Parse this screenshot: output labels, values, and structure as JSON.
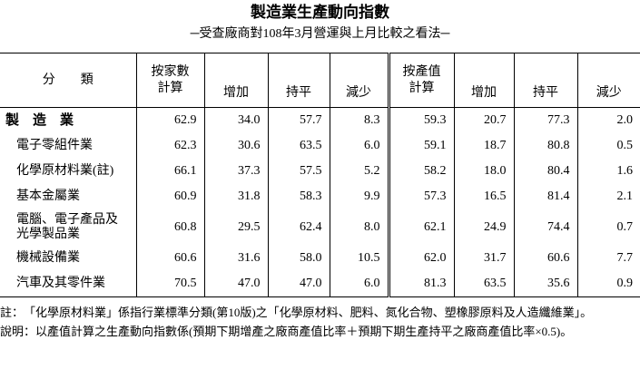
{
  "title": "製造業生產動向指數",
  "subtitle": "─受查廠商對108年3月營運與上月比較之看法─",
  "table": {
    "headers": [
      [
        "分　　類"
      ],
      [
        "按家數",
        "計算"
      ],
      [
        "增加"
      ],
      [
        "持平"
      ],
      [
        "減少"
      ],
      [
        "按產值",
        "計算"
      ],
      [
        "增加"
      ],
      [
        "持平"
      ],
      [
        "減少"
      ]
    ],
    "rows": [
      {
        "name": [
          "製　造　業"
        ],
        "bold": true,
        "values": [
          "62.9",
          "34.0",
          "57.7",
          "8.3",
          "59.3",
          "20.7",
          "77.3",
          "2.0"
        ]
      },
      {
        "name": [
          "電子零組件業"
        ],
        "values": [
          "62.3",
          "30.6",
          "63.5",
          "6.0",
          "59.1",
          "18.7",
          "80.8",
          "0.5"
        ]
      },
      {
        "name": [
          "化學原材料業(註)"
        ],
        "values": [
          "66.1",
          "37.3",
          "57.5",
          "5.2",
          "58.2",
          "18.0",
          "80.4",
          "1.6"
        ]
      },
      {
        "name": [
          "基本金屬業"
        ],
        "values": [
          "60.9",
          "31.8",
          "58.3",
          "9.9",
          "57.3",
          "16.5",
          "81.4",
          "2.1"
        ]
      },
      {
        "name": [
          "電腦、電子產品及",
          "光學製品業"
        ],
        "values": [
          "60.8",
          "29.5",
          "62.4",
          "8.0",
          "62.1",
          "24.9",
          "74.4",
          "0.7"
        ]
      },
      {
        "name": [
          "機械設備業"
        ],
        "values": [
          "60.6",
          "31.6",
          "58.0",
          "10.5",
          "62.0",
          "31.7",
          "60.6",
          "7.7"
        ]
      },
      {
        "name": [
          "汽車及其零件業"
        ],
        "values": [
          "70.5",
          "47.0",
          "47.0",
          "6.0",
          "81.3",
          "63.5",
          "35.6",
          "0.9"
        ]
      }
    ]
  },
  "notes": [
    {
      "label": "註：",
      "text": "「化學原材料業」係指行業標準分類(第10版)之「化學原材料、肥料、氮化合物、塑橡膠原料及人造纖維業」。"
    },
    {
      "label": "說明：",
      "text": "以產值計算之生產動向指數係(預期下期增產之廠商產值比率＋預期下期生產持平之廠商產值比率×0.5)。"
    }
  ]
}
